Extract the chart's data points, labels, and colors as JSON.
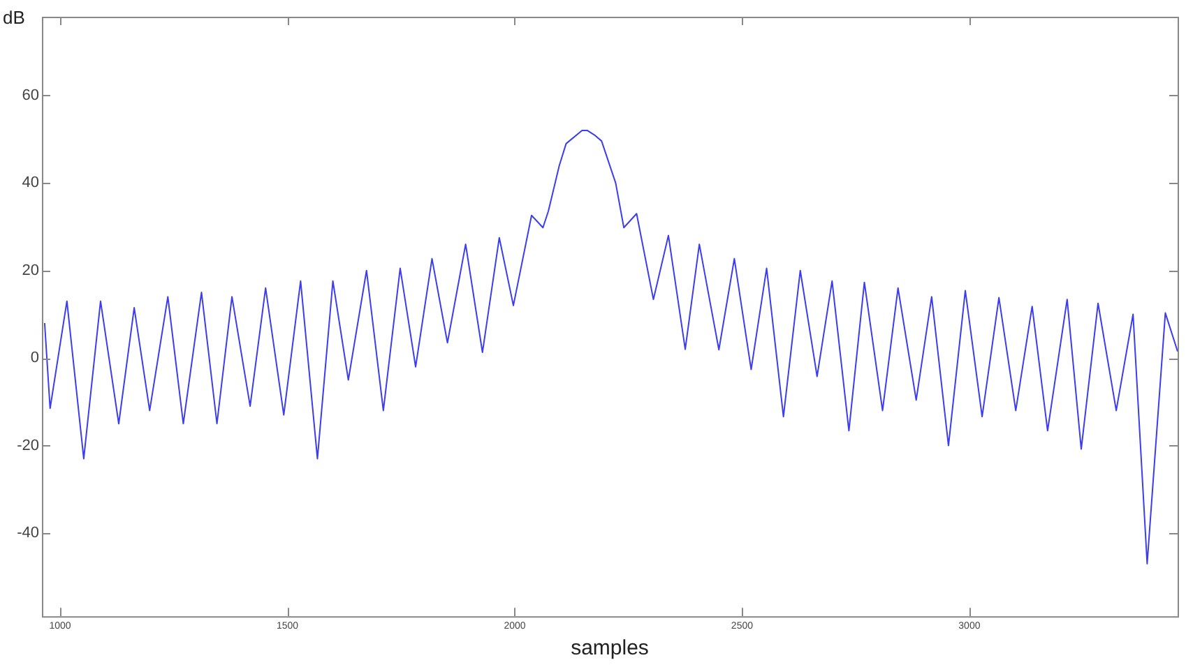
{
  "chart_data": {
    "type": "line",
    "xlabel": "samples",
    "ylabel": "dB",
    "xlim": [
      960,
      3458
    ],
    "xticks": [
      1000,
      1500,
      2000,
      2500,
      3000
    ],
    "ylim": [
      -59,
      78
    ],
    "yticks": [
      -40,
      -20,
      0,
      20,
      40,
      60
    ],
    "grid": false,
    "legend": false,
    "marker": "none",
    "line_style": "solid",
    "series": [
      {
        "color": "#3c3cf0",
        "x": [
          966,
          978,
          1015,
          1052,
          1089,
          1129,
          1163,
          1197,
          1237,
          1271,
          1311,
          1345,
          1378,
          1418,
          1452,
          1492,
          1529,
          1566,
          1600,
          1634,
          1674,
          1711,
          1748,
          1782,
          1818,
          1852,
          1892,
          1929,
          1966,
          1997,
          2037,
          2062,
          2074,
          2098,
          2113,
          2148,
          2160,
          2175,
          2191,
          2222,
          2240,
          2268,
          2305,
          2338,
          2375,
          2406,
          2449,
          2483,
          2520,
          2554,
          2591,
          2628,
          2665,
          2698,
          2735,
          2769,
          2809,
          2843,
          2883,
          2917,
          2954,
          2991,
          3028,
          3065,
          3102,
          3138,
          3172,
          3215,
          3246,
          3283,
          3323,
          3360,
          3391,
          3431,
          3458
        ],
        "values": [
          8,
          -11.5,
          13,
          -23,
          13,
          -15,
          11.5,
          -12,
          14,
          -15,
          15,
          -15,
          14,
          -11,
          16,
          -13,
          17.6,
          -23,
          17.6,
          -5,
          20,
          -12,
          20.5,
          -2,
          22.7,
          3.5,
          26,
          1.3,
          27.5,
          12,
          32.6,
          29.8,
          33.6,
          44,
          49,
          52,
          52,
          51,
          49.6,
          40,
          29.8,
          33,
          13.4,
          28,
          2,
          26,
          1.9,
          22.7,
          -2.6,
          20.5,
          -13.4,
          20,
          -4.2,
          17.6,
          -16.6,
          17.3,
          -12,
          16,
          -9.6,
          14,
          -20,
          15.4,
          -13.4,
          13.8,
          -12,
          11.8,
          -16.6,
          13.4,
          -20.8,
          12.5,
          -12,
          10,
          -47,
          10.3,
          1.5
        ]
      }
    ]
  }
}
